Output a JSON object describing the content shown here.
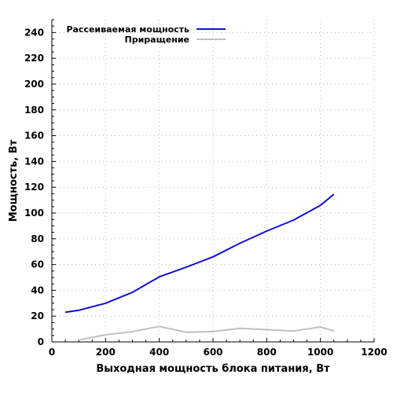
{
  "chart_data": {
    "type": "line",
    "title": "",
    "xlabel": "Выходная мощность блока питания, Вт",
    "ylabel": "Мощность, Вт",
    "xlim": [
      0,
      1200
    ],
    "ylim": [
      0,
      250
    ],
    "xticks": [
      0,
      200,
      400,
      600,
      800,
      1000,
      1200
    ],
    "yticks": [
      0,
      20,
      40,
      60,
      80,
      100,
      120,
      140,
      160,
      180,
      200,
      220,
      240
    ],
    "grid": true,
    "legend_position": "top-left",
    "series": [
      {
        "name": "Рассеиваемая мощность",
        "color": "#1010d8",
        "x": [
          50,
          100,
          200,
          300,
          400,
          500,
          600,
          700,
          800,
          900,
          1000,
          1050
        ],
        "y": [
          23,
          24.5,
          30,
          38.5,
          50.5,
          58,
          66,
          76.5,
          86,
          94.5,
          106,
          114.5
        ]
      },
      {
        "name": "Приращение",
        "color": "#c0c0c0",
        "x": [
          100,
          200,
          300,
          400,
          500,
          600,
          700,
          800,
          900,
          1000,
          1050
        ],
        "y": [
          1.5,
          5.5,
          8,
          12,
          7.5,
          8,
          10.5,
          9.5,
          8.5,
          11.5,
          8.5
        ]
      }
    ]
  }
}
